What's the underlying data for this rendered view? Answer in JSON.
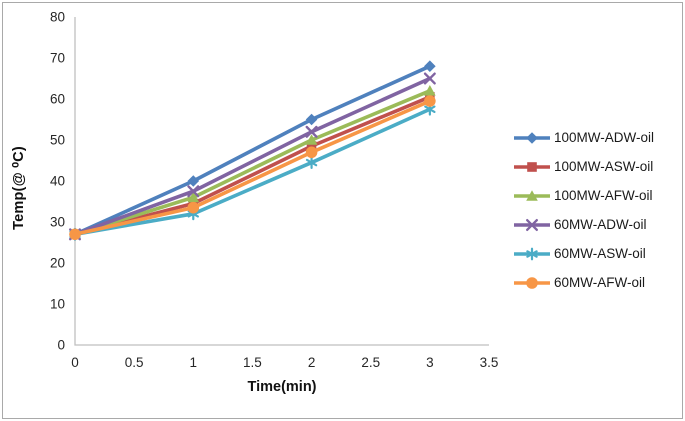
{
  "figure": {
    "background": "#ffffff",
    "border_color": "#a9a9a9"
  },
  "chart_data": {
    "type": "line",
    "title": "",
    "xlabel": "Time(min)",
    "ylabel": "Temp(@ ⁰C)",
    "x": [
      0,
      1,
      2,
      3
    ],
    "xlim": [
      0,
      3.5
    ],
    "ylim": [
      0,
      80
    ],
    "x_ticks": [
      "0",
      "0.5",
      "1",
      "1.5",
      "2",
      "2.5",
      "3",
      "3.5"
    ],
    "y_ticks": [
      "0",
      "10",
      "20",
      "30",
      "40",
      "50",
      "60",
      "70",
      "80"
    ],
    "grid": false,
    "legend_position": "right",
    "axis_color": "#bfbfbf",
    "tick_label_color": "#262626",
    "series": [
      {
        "name": "100MW-ADW-oil",
        "color": "#4F81BD",
        "marker": "diamond",
        "values": [
          27,
          40,
          55,
          68
        ]
      },
      {
        "name": "100MW-ASW-oil",
        "color": "#C0504D",
        "marker": "square",
        "values": [
          27,
          34.5,
          48.5,
          60.5
        ]
      },
      {
        "name": "100MW-AFW-oil",
        "color": "#9BBB59",
        "marker": "triangle",
        "values": [
          27,
          36,
          50,
          62
        ]
      },
      {
        "name": "60MW-ADW-oil",
        "color": "#8064A2",
        "marker": "x",
        "values": [
          27,
          37.5,
          52,
          65
        ]
      },
      {
        "name": "60MW-ASW-oil",
        "color": "#4BACC6",
        "marker": "asterisk",
        "values": [
          27,
          32,
          44.5,
          57.5
        ]
      },
      {
        "name": "60MW-AFW-oil",
        "color": "#F79646",
        "marker": "circle",
        "values": [
          27,
          33.5,
          47,
          59.5
        ]
      }
    ]
  }
}
